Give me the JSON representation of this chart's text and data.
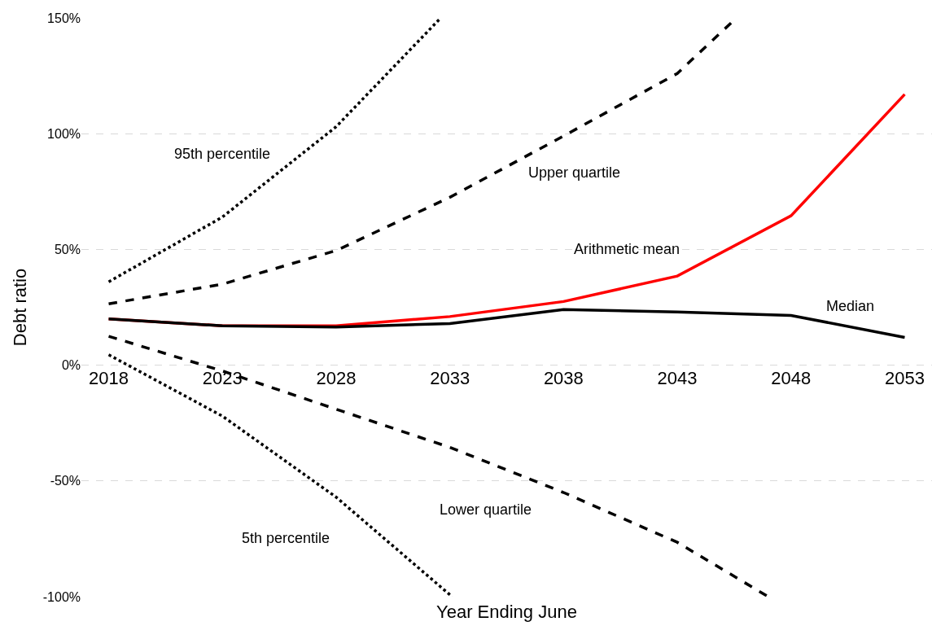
{
  "chart_data": {
    "type": "line",
    "xlabel": "Year Ending June",
    "ylabel": "Debt ratio",
    "xlim": [
      2016.8,
      2054.2
    ],
    "xticks": [
      2018,
      2023,
      2028,
      2033,
      2038,
      2043,
      2048,
      2053
    ],
    "ylim": [
      -100,
      150
    ],
    "yticks": [
      {
        "value": -100,
        "label": "-100%"
      },
      {
        "value": -50,
        "label": "-50%"
      },
      {
        "value": 0,
        "label": "0%"
      },
      {
        "value": 50,
        "label": "50%"
      },
      {
        "value": 100,
        "label": "100%"
      },
      {
        "value": 150,
        "label": "150%"
      }
    ],
    "grid": "y",
    "legend": false,
    "marker": "none",
    "series": [
      {
        "name": "95th percentile",
        "color": "#000000",
        "line_style": "dotted",
        "x": [
          2018,
          2023,
          2028,
          2032.6
        ],
        "values": [
          36,
          64,
          103,
          150
        ]
      },
      {
        "name": "Upper quartile",
        "color": "#000000",
        "line_style": "dashed",
        "x": [
          2018,
          2023,
          2028,
          2033,
          2038,
          2043,
          2045.6
        ],
        "values": [
          26.5,
          35,
          49.5,
          72.5,
          99,
          126,
          150
        ]
      },
      {
        "name": "Arithmetic mean",
        "color": "#ff0000",
        "line_style": "solid",
        "x": [
          2018,
          2023,
          2028,
          2033,
          2038,
          2043,
          2048,
          2053
        ],
        "values": [
          20,
          17,
          17,
          21,
          27.5,
          38.5,
          64.5,
          117
        ]
      },
      {
        "name": "Median",
        "color": "#000000",
        "line_style": "solid",
        "x": [
          2018,
          2023,
          2028,
          2033,
          2038,
          2043,
          2048,
          2053
        ],
        "values": [
          20,
          17,
          16.5,
          18,
          24,
          23,
          21.5,
          12
        ]
      },
      {
        "name": "Lower quartile",
        "color": "#000000",
        "line_style": "dashed",
        "x": [
          2018,
          2023,
          2028,
          2033,
          2038,
          2043,
          2047
        ],
        "values": [
          12.5,
          -2.5,
          -19,
          -35.5,
          -55,
          -76.5,
          -100
        ]
      },
      {
        "name": "5th percentile",
        "color": "#000000",
        "line_style": "dotted",
        "x": [
          2018,
          2023,
          2028,
          2033.1
        ],
        "values": [
          4.5,
          -22,
          -57,
          -100
        ]
      }
    ]
  }
}
